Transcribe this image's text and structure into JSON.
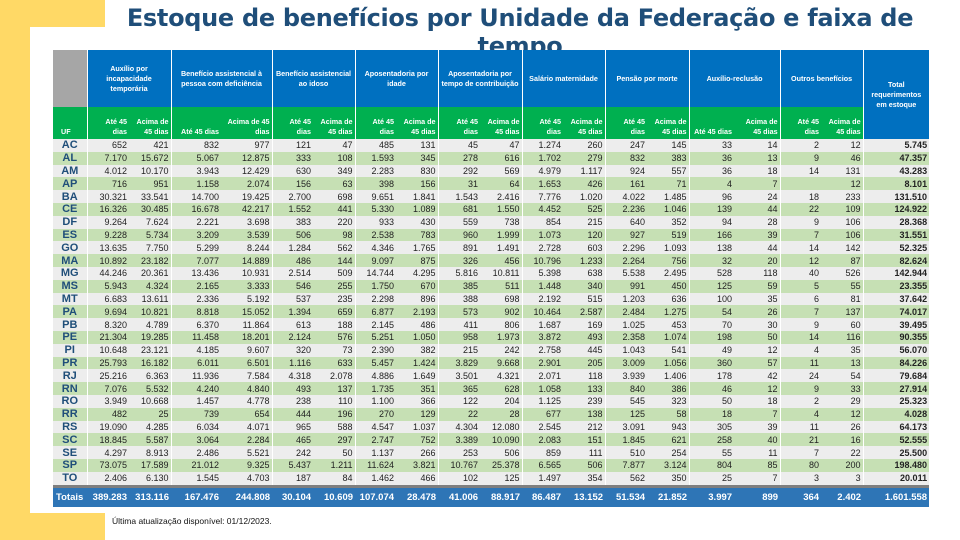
{
  "title": "Estoque de benefícios por Unidade da Federação e faixa de tempo",
  "colors": {
    "header_blue": "#0070c0",
    "sub_green": "#00b050",
    "row_green": "#c6e0b4",
    "row_gray": "#ededed",
    "totals_blue": "#2e75b6",
    "accent_yellow": "#ffd966",
    "title": "#1f4e79"
  },
  "table": {
    "uf_label": "UF",
    "groups": [
      "Auxílio por incapacidade temporária",
      "Benefício assistencial à pessoa com deficiência",
      "Benefício assistencial ao idoso",
      "Aposentadoria por idade",
      "Aposentadoria por tempo de contribuição",
      "Salário maternidade",
      "Pensão por morte",
      "Auxílio-reclusão",
      "Outros benefícios"
    ],
    "sub_upto": "Até 45 dias",
    "sub_over": "Acima de 45 dias",
    "total_header": "Total requerimentos em estoque",
    "rows": [
      [
        "AC",
        "652",
        "421",
        "832",
        "977",
        "121",
        "47",
        "485",
        "131",
        "45",
        "47",
        "1.274",
        "260",
        "247",
        "145",
        "33",
        "14",
        "2",
        "12",
        "5.745"
      ],
      [
        "AL",
        "7.170",
        "15.672",
        "5.067",
        "12.875",
        "333",
        "108",
        "1.593",
        "345",
        "278",
        "616",
        "1.702",
        "279",
        "832",
        "383",
        "36",
        "13",
        "9",
        "46",
        "47.357"
      ],
      [
        "AM",
        "4.012",
        "10.170",
        "3.943",
        "12.429",
        "630",
        "349",
        "2.283",
        "830",
        "292",
        "569",
        "4.979",
        "1.117",
        "924",
        "557",
        "36",
        "18",
        "14",
        "131",
        "43.283"
      ],
      [
        "AP",
        "716",
        "951",
        "1.158",
        "2.074",
        "156",
        "63",
        "398",
        "156",
        "31",
        "64",
        "1.653",
        "426",
        "161",
        "71",
        "4",
        "7",
        "",
        "12",
        "8.101"
      ],
      [
        "BA",
        "30.321",
        "33.541",
        "14.700",
        "19.425",
        "2.700",
        "698",
        "9.651",
        "1.841",
        "1.543",
        "2.416",
        "7.776",
        "1.020",
        "4.022",
        "1.485",
        "96",
        "24",
        "18",
        "233",
        "131.510"
      ],
      [
        "CE",
        "16.326",
        "30.485",
        "16.678",
        "42.217",
        "1.552",
        "441",
        "5.330",
        "1.089",
        "681",
        "1.550",
        "4.452",
        "525",
        "2.236",
        "1.046",
        "139",
        "44",
        "22",
        "109",
        "124.922"
      ],
      [
        "DF",
        "9.264",
        "7.624",
        "2.221",
        "3.698",
        "383",
        "220",
        "933",
        "430",
        "559",
        "738",
        "854",
        "215",
        "640",
        "352",
        "94",
        "28",
        "9",
        "106",
        "28.368"
      ],
      [
        "ES",
        "9.228",
        "5.734",
        "3.209",
        "3.539",
        "506",
        "98",
        "2.538",
        "783",
        "960",
        "1.999",
        "1.073",
        "120",
        "927",
        "519",
        "166",
        "39",
        "7",
        "106",
        "31.551"
      ],
      [
        "GO",
        "13.635",
        "7.750",
        "5.299",
        "8.244",
        "1.284",
        "562",
        "4.346",
        "1.765",
        "891",
        "1.491",
        "2.728",
        "603",
        "2.296",
        "1.093",
        "138",
        "44",
        "14",
        "142",
        "52.325"
      ],
      [
        "MA",
        "10.892",
        "23.182",
        "7.077",
        "14.889",
        "486",
        "144",
        "9.097",
        "875",
        "326",
        "456",
        "10.796",
        "1.233",
        "2.264",
        "756",
        "32",
        "20",
        "12",
        "87",
        "82.624"
      ],
      [
        "MG",
        "44.246",
        "20.361",
        "13.436",
        "10.931",
        "2.514",
        "509",
        "14.744",
        "4.295",
        "5.816",
        "10.811",
        "5.398",
        "638",
        "5.538",
        "2.495",
        "528",
        "118",
        "40",
        "526",
        "142.944"
      ],
      [
        "MS",
        "5.943",
        "4.324",
        "2.165",
        "3.333",
        "546",
        "255",
        "1.750",
        "670",
        "385",
        "511",
        "1.448",
        "340",
        "991",
        "450",
        "125",
        "59",
        "5",
        "55",
        "23.355"
      ],
      [
        "MT",
        "6.683",
        "13.611",
        "2.336",
        "5.192",
        "537",
        "235",
        "2.298",
        "896",
        "388",
        "698",
        "2.192",
        "515",
        "1.203",
        "636",
        "100",
        "35",
        "6",
        "81",
        "37.642"
      ],
      [
        "PA",
        "9.694",
        "10.821",
        "8.818",
        "15.052",
        "1.394",
        "659",
        "6.877",
        "2.193",
        "573",
        "902",
        "10.464",
        "2.587",
        "2.484",
        "1.275",
        "54",
        "26",
        "7",
        "137",
        "74.017"
      ],
      [
        "PB",
        "8.320",
        "4.789",
        "6.370",
        "11.864",
        "613",
        "188",
        "2.145",
        "486",
        "411",
        "806",
        "1.687",
        "169",
        "1.025",
        "453",
        "70",
        "30",
        "9",
        "60",
        "39.495"
      ],
      [
        "PE",
        "21.304",
        "19.285",
        "11.458",
        "18.201",
        "2.124",
        "576",
        "5.251",
        "1.050",
        "958",
        "1.973",
        "3.872",
        "493",
        "2.358",
        "1.074",
        "198",
        "50",
        "14",
        "116",
        "90.355"
      ],
      [
        "PI",
        "10.648",
        "23.121",
        "4.185",
        "9.607",
        "320",
        "73",
        "2.390",
        "382",
        "215",
        "242",
        "2.758",
        "445",
        "1.043",
        "541",
        "49",
        "12",
        "4",
        "35",
        "56.070"
      ],
      [
        "PR",
        "25.793",
        "16.182",
        "6.011",
        "6.501",
        "1.116",
        "633",
        "5.457",
        "1.424",
        "3.829",
        "9.668",
        "2.901",
        "205",
        "3.009",
        "1.056",
        "360",
        "57",
        "11",
        "13",
        "84.226"
      ],
      [
        "RJ",
        "25.216",
        "6.363",
        "11.936",
        "7.584",
        "4.318",
        "2.078",
        "4.886",
        "1.649",
        "3.501",
        "4.321",
        "2.071",
        "118",
        "3.939",
        "1.406",
        "178",
        "42",
        "24",
        "54",
        "79.684"
      ],
      [
        "RN",
        "7.076",
        "5.532",
        "4.240",
        "4.840",
        "493",
        "137",
        "1.735",
        "351",
        "365",
        "628",
        "1.058",
        "133",
        "840",
        "386",
        "46",
        "12",
        "9",
        "33",
        "27.914"
      ],
      [
        "RO",
        "3.949",
        "10.668",
        "1.457",
        "4.778",
        "238",
        "110",
        "1.100",
        "366",
        "122",
        "204",
        "1.125",
        "239",
        "545",
        "323",
        "50",
        "18",
        "2",
        "29",
        "25.323"
      ],
      [
        "RR",
        "482",
        "25",
        "739",
        "654",
        "444",
        "196",
        "270",
        "129",
        "22",
        "28",
        "677",
        "138",
        "125",
        "58",
        "18",
        "7",
        "4",
        "12",
        "4.028"
      ],
      [
        "RS",
        "19.090",
        "4.285",
        "6.034",
        "4.071",
        "965",
        "588",
        "4.547",
        "1.037",
        "4.304",
        "12.080",
        "2.545",
        "212",
        "3.091",
        "943",
        "305",
        "39",
        "11",
        "26",
        "64.173"
      ],
      [
        "SC",
        "18.845",
        "5.587",
        "3.064",
        "2.284",
        "465",
        "297",
        "2.747",
        "752",
        "3.389",
        "10.090",
        "2.083",
        "151",
        "1.845",
        "621",
        "258",
        "40",
        "21",
        "16",
        "52.555"
      ],
      [
        "SE",
        "4.297",
        "8.913",
        "2.486",
        "5.521",
        "242",
        "50",
        "1.137",
        "266",
        "253",
        "506",
        "859",
        "111",
        "510",
        "254",
        "55",
        "11",
        "7",
        "22",
        "25.500"
      ],
      [
        "SP",
        "73.075",
        "17.589",
        "21.012",
        "9.325",
        "5.437",
        "1.211",
        "11.624",
        "3.821",
        "10.767",
        "25.378",
        "6.565",
        "506",
        "7.877",
        "3.124",
        "804",
        "85",
        "80",
        "200",
        "198.480"
      ],
      [
        "TO",
        "2.406",
        "6.130",
        "1.545",
        "4.703",
        "187",
        "84",
        "1.462",
        "466",
        "102",
        "125",
        "1.497",
        "354",
        "562",
        "350",
        "25",
        "7",
        "3",
        "3",
        "20.011"
      ]
    ],
    "totals": [
      "Totais",
      "389.283",
      "313.116",
      "167.476",
      "244.808",
      "30.104",
      "10.609",
      "107.074",
      "28.478",
      "41.006",
      "88.917",
      "86.487",
      "13.152",
      "51.534",
      "21.852",
      "3.997",
      "899",
      "364",
      "2.402",
      "1.601.558"
    ]
  },
  "footnote": "Última atualização disponível:  01/12/2023."
}
